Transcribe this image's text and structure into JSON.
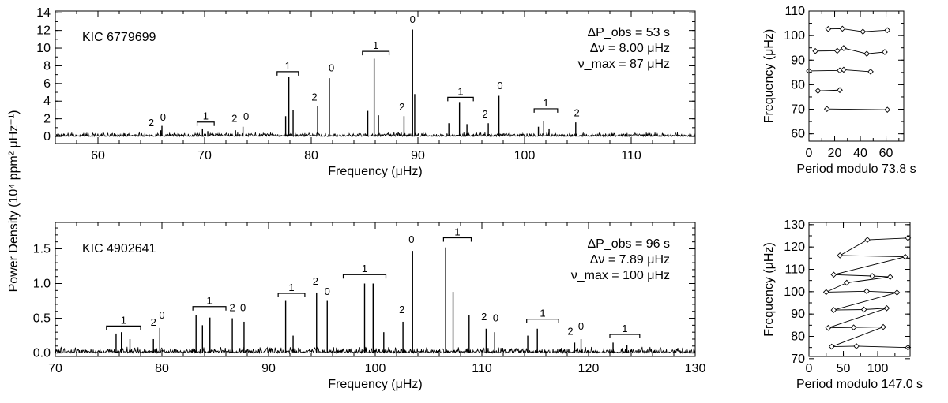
{
  "figure": {
    "shared_ylabel": "Power Density (10⁴ ppm² μHz⁻¹)"
  },
  "chart_data": [
    {
      "type": "line",
      "panel": "top-spectrum",
      "star": "KIC 6779699",
      "xlabel": "Frequency (μHz)",
      "xlim": [
        56,
        116
      ],
      "ylim": [
        -0.8,
        14.2
      ],
      "xticks": [
        60,
        70,
        80,
        90,
        100,
        110
      ],
      "xminor": 2,
      "yticks": [
        0,
        2,
        4,
        6,
        8,
        10,
        12,
        14
      ],
      "yticklabels": [
        "0",
        "2",
        "4",
        "6",
        "8",
        "10",
        "12",
        "14"
      ],
      "yminor": 1,
      "annotations": [
        "ΔP_obs = 53 s",
        "Δν = 8.00 μHz",
        "ν_max = 87 μHz"
      ],
      "noise_level": 0.5,
      "peaks": [
        {
          "x": 65.9,
          "y": 0.7
        },
        {
          "x": 66.0,
          "y": 1.2
        },
        {
          "x": 69.8,
          "y": 0.9
        },
        {
          "x": 70.3,
          "y": 0.6
        },
        {
          "x": 72.9,
          "y": 0.7
        },
        {
          "x": 73.6,
          "y": 1.1
        },
        {
          "x": 77.6,
          "y": 2.3
        },
        {
          "x": 77.9,
          "y": 6.7
        },
        {
          "x": 78.3,
          "y": 3.0
        },
        {
          "x": 80.6,
          "y": 3.4
        },
        {
          "x": 81.7,
          "y": 6.6
        },
        {
          "x": 85.3,
          "y": 2.9
        },
        {
          "x": 85.9,
          "y": 8.8
        },
        {
          "x": 86.3,
          "y": 2.4
        },
        {
          "x": 88.7,
          "y": 2.3
        },
        {
          "x": 89.5,
          "y": 12.1
        },
        {
          "x": 89.7,
          "y": 4.8
        },
        {
          "x": 92.9,
          "y": 1.5
        },
        {
          "x": 93.9,
          "y": 3.9
        },
        {
          "x": 94.6,
          "y": 1.4
        },
        {
          "x": 96.6,
          "y": 1.5
        },
        {
          "x": 97.6,
          "y": 4.6
        },
        {
          "x": 101.3,
          "y": 1.1
        },
        {
          "x": 101.8,
          "y": 1.7
        },
        {
          "x": 102.3,
          "y": 0.9
        },
        {
          "x": 104.8,
          "y": 1.6
        }
      ],
      "mode_labels": [
        {
          "text": "2",
          "x": 65.0,
          "y": 0.9
        },
        {
          "text": "0",
          "x": 66.1,
          "y": 1.5
        },
        {
          "text": "2",
          "x": 72.8,
          "y": 1.4
        },
        {
          "text": "0",
          "x": 73.9,
          "y": 1.6
        },
        {
          "text": "2",
          "x": 80.3,
          "y": 3.8
        },
        {
          "text": "0",
          "x": 81.9,
          "y": 7.1
        },
        {
          "text": "2",
          "x": 88.5,
          "y": 2.7
        },
        {
          "text": "0",
          "x": 89.5,
          "y": 12.6
        },
        {
          "text": "2",
          "x": 96.3,
          "y": 1.9
        },
        {
          "text": "0",
          "x": 97.7,
          "y": 5.1
        },
        {
          "text": "2",
          "x": 104.9,
          "y": 2.0
        }
      ],
      "l1_brackets": [
        {
          "text": "1",
          "x0": 69.3,
          "x1": 70.9,
          "y": 1.1
        },
        {
          "text": "1",
          "x0": 76.8,
          "x1": 78.8,
          "y": 6.8
        },
        {
          "text": "1",
          "x0": 84.8,
          "x1": 87.3,
          "y": 9.1
        },
        {
          "text": "1",
          "x0": 92.8,
          "x1": 95.2,
          "y": 3.9
        },
        {
          "text": "1",
          "x0": 100.9,
          "x1": 103.1,
          "y": 2.6
        }
      ]
    },
    {
      "type": "line",
      "panel": "bottom-spectrum",
      "star": "KIC 4902641",
      "xlabel": "Frequency (μHz)",
      "xlim": [
        70,
        130
      ],
      "ylim": [
        -0.05,
        1.88
      ],
      "xticks": [
        70,
        80,
        90,
        100,
        110,
        120,
        130
      ],
      "xminor": 2,
      "yticks": [
        0,
        0.5,
        1.0,
        1.5
      ],
      "yticklabels": [
        "0.0",
        "0.5",
        "1.0",
        "1.5"
      ],
      "yminor": 0.1,
      "annotations": [
        "ΔP_obs = 96 s",
        "Δν = 7.89 μHz",
        "ν_max = 100 μHz"
      ],
      "noise_level": 0.09,
      "peaks": [
        {
          "x": 75.7,
          "y": 0.28
        },
        {
          "x": 76.2,
          "y": 0.3
        },
        {
          "x": 77.0,
          "y": 0.2
        },
        {
          "x": 79.2,
          "y": 0.2
        },
        {
          "x": 79.8,
          "y": 0.36
        },
        {
          "x": 83.2,
          "y": 0.55
        },
        {
          "x": 83.8,
          "y": 0.4
        },
        {
          "x": 84.5,
          "y": 0.51
        },
        {
          "x": 86.6,
          "y": 0.5
        },
        {
          "x": 87.7,
          "y": 0.45
        },
        {
          "x": 91.6,
          "y": 0.75
        },
        {
          "x": 92.3,
          "y": 0.25
        },
        {
          "x": 94.5,
          "y": 0.87
        },
        {
          "x": 95.5,
          "y": 0.75
        },
        {
          "x": 99.0,
          "y": 1.0
        },
        {
          "x": 99.8,
          "y": 1.0
        },
        {
          "x": 100.8,
          "y": 0.3
        },
        {
          "x": 102.6,
          "y": 0.45
        },
        {
          "x": 103.5,
          "y": 1.47
        },
        {
          "x": 106.6,
          "y": 1.52
        },
        {
          "x": 107.3,
          "y": 0.88
        },
        {
          "x": 108.8,
          "y": 0.55
        },
        {
          "x": 110.4,
          "y": 0.35
        },
        {
          "x": 111.2,
          "y": 0.3
        },
        {
          "x": 114.3,
          "y": 0.25
        },
        {
          "x": 115.2,
          "y": 0.35
        },
        {
          "x": 118.7,
          "y": 0.15
        },
        {
          "x": 119.3,
          "y": 0.2
        },
        {
          "x": 122.3,
          "y": 0.15
        },
        {
          "x": 123.6,
          "y": 0.12
        }
      ],
      "mode_labels": [
        {
          "text": "2",
          "x": 79.2,
          "y": 0.36
        },
        {
          "text": "0",
          "x": 80.0,
          "y": 0.46
        },
        {
          "text": "2",
          "x": 86.6,
          "y": 0.57
        },
        {
          "text": "0",
          "x": 87.6,
          "y": 0.57
        },
        {
          "text": "2",
          "x": 94.4,
          "y": 0.95
        },
        {
          "text": "0",
          "x": 95.5,
          "y": 0.8
        },
        {
          "text": "2",
          "x": 102.5,
          "y": 0.54
        },
        {
          "text": "0",
          "x": 103.4,
          "y": 1.55
        },
        {
          "text": "2",
          "x": 110.2,
          "y": 0.44
        },
        {
          "text": "0",
          "x": 111.3,
          "y": 0.42
        },
        {
          "text": "2",
          "x": 118.3,
          "y": 0.23
        },
        {
          "text": "0",
          "x": 119.3,
          "y": 0.3
        }
      ],
      "l1_brackets": [
        {
          "text": "1",
          "x0": 74.8,
          "x1": 78.0,
          "y": 0.32
        },
        {
          "text": "1",
          "x0": 82.9,
          "x1": 86.0,
          "y": 0.6
        },
        {
          "text": "1",
          "x0": 90.9,
          "x1": 93.4,
          "y": 0.79
        },
        {
          "text": "1",
          "x0": 97.0,
          "x1": 101.0,
          "y": 1.06
        },
        {
          "text": "1",
          "x0": 106.4,
          "x1": 109.0,
          "y": 1.59
        },
        {
          "text": "1",
          "x0": 114.2,
          "x1": 117.2,
          "y": 0.42
        },
        {
          "text": "1",
          "x0": 122.0,
          "x1": 124.8,
          "y": 0.2
        }
      ]
    },
    {
      "type": "scatter",
      "panel": "top-echelle",
      "xlabel": "Period modulo 73.8 s",
      "ylabel": "Frequency (μHz)",
      "xlim": [
        0,
        73.8
      ],
      "ylim": [
        57,
        110
      ],
      "xticks": [
        0,
        20,
        40,
        60
      ],
      "xminor": 10,
      "yticks": [
        60,
        70,
        80,
        90,
        100,
        110
      ],
      "yminor": 5,
      "points": [
        {
          "x": 15,
          "y": 102.7
        },
        {
          "x": 26,
          "y": 102.8
        },
        {
          "x": 42,
          "y": 101.6
        },
        {
          "x": 61,
          "y": 102.2
        },
        {
          "x": 5,
          "y": 93.7
        },
        {
          "x": 22,
          "y": 93.8
        },
        {
          "x": 27,
          "y": 94.9
        },
        {
          "x": 45,
          "y": 92.6
        },
        {
          "x": 59,
          "y": 93.3
        },
        {
          "x": 0,
          "y": 85.6
        },
        {
          "x": 24,
          "y": 85.8
        },
        {
          "x": 27,
          "y": 86.1
        },
        {
          "x": 48,
          "y": 85.3
        },
        {
          "x": 7,
          "y": 77.5
        },
        {
          "x": 24,
          "y": 77.8
        },
        {
          "x": 14,
          "y": 70.1
        },
        {
          "x": 61,
          "y": 69.8
        }
      ],
      "path_segments": [
        [
          0,
          1,
          2,
          3
        ],
        [
          4,
          5,
          6,
          7,
          8
        ],
        [
          9,
          10,
          11,
          12
        ],
        [
          13,
          14
        ],
        [
          15,
          16
        ]
      ]
    },
    {
      "type": "scatter",
      "panel": "bottom-echelle",
      "xlabel": "Period modulo 147.0 s",
      "ylabel": "Frequency (μHz)",
      "xlim": [
        0,
        147
      ],
      "ylim": [
        71,
        131
      ],
      "xticks": [
        0,
        50,
        100
      ],
      "xminor": 25,
      "yticks": [
        70,
        80,
        90,
        100,
        110,
        120,
        130
      ],
      "yminor": 5,
      "points": [
        {
          "x": 144,
          "y": 124.0
        },
        {
          "x": 85,
          "y": 123.2
        },
        {
          "x": 45,
          "y": 116.2
        },
        {
          "x": 140,
          "y": 115.6
        },
        {
          "x": 36,
          "y": 107.6
        },
        {
          "x": 92,
          "y": 107.0
        },
        {
          "x": 118,
          "y": 106.6
        },
        {
          "x": 55,
          "y": 104.0
        },
        {
          "x": 25,
          "y": 99.8
        },
        {
          "x": 84,
          "y": 100.2
        },
        {
          "x": 128,
          "y": 99.6
        },
        {
          "x": 36,
          "y": 91.8
        },
        {
          "x": 80,
          "y": 92.0
        },
        {
          "x": 113,
          "y": 92.6
        },
        {
          "x": 28,
          "y": 83.8
        },
        {
          "x": 65,
          "y": 84.0
        },
        {
          "x": 108,
          "y": 84.2
        },
        {
          "x": 33,
          "y": 75.4
        },
        {
          "x": 69,
          "y": 75.6
        },
        {
          "x": 144,
          "y": 75.0
        }
      ],
      "path_segments": [
        [
          0,
          1,
          2,
          3
        ],
        [
          3,
          4,
          5,
          6,
          7
        ],
        [
          7,
          8,
          9,
          10,
          11
        ],
        [
          11,
          12,
          13,
          14
        ],
        [
          14,
          15,
          16,
          17
        ],
        [
          17,
          18,
          19
        ]
      ]
    }
  ]
}
